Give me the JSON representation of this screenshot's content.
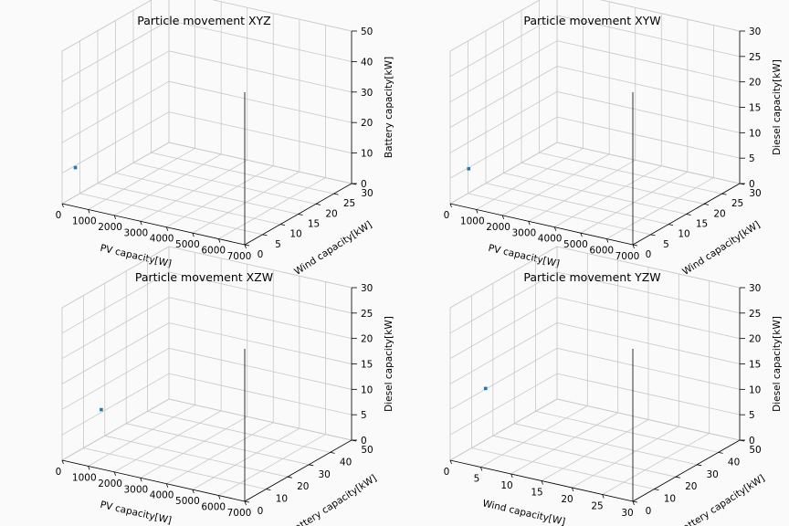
{
  "chart_data": [
    {
      "type": "scatter",
      "title": "Particle movement XYZ",
      "xlabel": "PV capacity[W]",
      "ylabel": "Wind capacity[kW]",
      "zlabel": "Battery capacity[kW]",
      "xlim": [
        0,
        7000
      ],
      "ylim": [
        0,
        30
      ],
      "zlim": [
        0,
        50
      ],
      "xticks": [
        "0",
        "1000",
        "2000",
        "3000",
        "4000",
        "5000",
        "6000",
        "7000"
      ],
      "yticks": [
        "0",
        "5",
        "10",
        "15",
        "20",
        "25",
        "30"
      ],
      "zticks": [
        "0",
        "10",
        "20",
        "30",
        "40",
        "50"
      ],
      "points": [
        {
          "x": 100,
          "y": 3,
          "z": 10
        }
      ],
      "color": "#1f77b4",
      "grid": true
    },
    {
      "type": "scatter",
      "title": "Particle movement XYW",
      "xlabel": "PV capacity[W]",
      "ylabel": "Wind capacity[kW]",
      "zlabel": "Diesel capacity[kW]",
      "xlim": [
        0,
        7000
      ],
      "ylim": [
        0,
        30
      ],
      "zlim": [
        0,
        30
      ],
      "xticks": [
        "0",
        "1000",
        "2000",
        "3000",
        "4000",
        "5000",
        "6000",
        "7000"
      ],
      "yticks": [
        "0",
        "5",
        "10",
        "15",
        "20",
        "25",
        "30"
      ],
      "zticks": [
        "0",
        "5",
        "10",
        "15",
        "20",
        "25",
        "30"
      ],
      "points": [
        {
          "x": 300,
          "y": 3,
          "z": 6
        }
      ],
      "color": "#1f77b4",
      "grid": true
    },
    {
      "type": "scatter",
      "title": "Particle movement XZW",
      "xlabel": "PV capacity[W]",
      "ylabel": "Battery capacity[kW]",
      "zlabel": "Diesel capacity[kW]",
      "xlim": [
        0,
        7000
      ],
      "ylim": [
        0,
        50
      ],
      "zlim": [
        0,
        30
      ],
      "xticks": [
        "0",
        "1000",
        "2000",
        "3000",
        "4000",
        "5000",
        "6000",
        "7000"
      ],
      "yticks": [
        "0",
        "10",
        "20",
        "30",
        "40",
        "50"
      ],
      "zticks": [
        "0",
        "5",
        "10",
        "15",
        "20",
        "25",
        "30"
      ],
      "points": [
        {
          "x": 600,
          "y": 11,
          "z": 8
        }
      ],
      "color": "#1f77b4",
      "grid": true
    },
    {
      "type": "scatter",
      "title": "Particle movement YZW",
      "xlabel": "Wind capacity[W]",
      "ylabel": "Battery capacity[kW]",
      "zlabel": "Diesel capacity[kW]",
      "xlim": [
        0,
        30
      ],
      "ylim": [
        0,
        50
      ],
      "zlim": [
        0,
        30
      ],
      "xticks": [
        "0",
        "5",
        "10",
        "15",
        "20",
        "25",
        "30"
      ],
      "yticks": [
        "0",
        "10",
        "20",
        "30",
        "40",
        "50"
      ],
      "zticks": [
        "0",
        "5",
        "10",
        "15",
        "20",
        "25",
        "30"
      ],
      "points": [
        {
          "x": 3,
          "y": 8,
          "z": 13
        }
      ],
      "color": "#1f77b4",
      "grid": true
    }
  ]
}
